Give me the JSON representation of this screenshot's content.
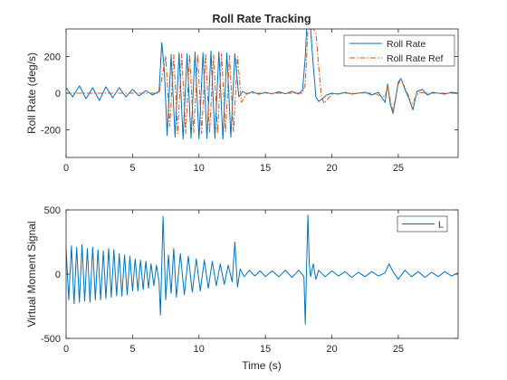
{
  "chart_data": [
    {
      "type": "line",
      "title": "Roll Rate Tracking",
      "xlabel": "",
      "ylabel": "Roll Rate (deg/s)",
      "xlim": [
        0,
        29.5
      ],
      "ylim": [
        -350,
        350
      ],
      "xticks": [
        0,
        5,
        10,
        15,
        20,
        25
      ],
      "yticks": [
        -200,
        0,
        200
      ],
      "xtick_labels": [
        "0",
        "5",
        "10",
        "15",
        "20",
        "25"
      ],
      "ytick_labels": [
        "-200",
        "0",
        "200"
      ],
      "legend_position": "top-right",
      "grid": false,
      "series": [
        {
          "name": "Roll Rate",
          "color": "#0072BD",
          "style": "solid",
          "x": [
            0,
            0.5,
            1,
            1.5,
            2,
            2.5,
            3,
            3.5,
            4,
            4.5,
            5,
            5.5,
            6,
            6.5,
            7,
            7.2,
            7.4,
            7.6,
            7.9,
            8.2,
            8.5,
            8.8,
            9.1,
            9.4,
            9.7,
            10.0,
            10.3,
            10.6,
            10.9,
            11.2,
            11.5,
            11.8,
            12.1,
            12.4,
            12.7,
            13.0,
            13.3,
            13.6,
            14,
            14.5,
            15,
            15.5,
            16,
            16.5,
            17,
            17.5,
            17.8,
            18.0,
            18.1,
            18.2,
            18.4,
            18.6,
            18.8,
            19.0,
            19.3,
            19.6,
            20,
            20.5,
            21,
            21.5,
            22,
            22.5,
            23,
            23.5,
            24.0,
            24.2,
            24.4,
            24.6,
            24.8,
            25.0,
            25.2,
            25.5,
            25.8,
            26.1,
            26.4,
            26.8,
            27.2,
            27.6,
            28,
            28.5,
            29,
            29.5
          ],
          "y": [
            30,
            -20,
            40,
            -30,
            30,
            -40,
            35,
            -25,
            30,
            -20,
            20,
            -15,
            15,
            -10,
            10,
            275,
            120,
            -230,
            210,
            -240,
            220,
            -250,
            215,
            -245,
            225,
            -250,
            220,
            -245,
            230,
            -245,
            225,
            -250,
            220,
            -240,
            215,
            -20,
            10,
            -5,
            8,
            -6,
            5,
            -4,
            8,
            -3,
            10,
            -5,
            20,
            200,
            350,
            350,
            350,
            150,
            -20,
            -45,
            -30,
            -10,
            0,
            -5,
            5,
            -5,
            0,
            5,
            -10,
            5,
            -50,
            50,
            -60,
            -110,
            -30,
            60,
            80,
            20,
            -30,
            -90,
            10,
            20,
            -10,
            5,
            0,
            -5,
            5,
            0
          ]
        },
        {
          "name": "Roll Rate Ref",
          "color": "#D95319",
          "style": "dashdot",
          "x": [
            0,
            1,
            2,
            3,
            4,
            5,
            6,
            7,
            7.2,
            7.5,
            7.8,
            8.1,
            8.4,
            8.7,
            9.0,
            9.3,
            9.6,
            9.9,
            10.2,
            10.5,
            10.8,
            11.1,
            11.4,
            11.7,
            12.0,
            12.3,
            12.6,
            12.9,
            13.2,
            13.6,
            14,
            15,
            16,
            17,
            17.8,
            18.0,
            18.2,
            18.4,
            18.6,
            18.8,
            19.0,
            19.2,
            19.4,
            19.7,
            20,
            21,
            22,
            23,
            24.0,
            24.2,
            24.4,
            24.6,
            24.8,
            25.0,
            25.2,
            25.5,
            25.8,
            26.0,
            26.3,
            26.6,
            27,
            28,
            29,
            29.5
          ],
          "y": [
            0,
            0,
            0,
            0,
            0,
            0,
            0,
            0,
            80,
            200,
            -180,
            210,
            -220,
            215,
            -220,
            210,
            -215,
            210,
            -220,
            215,
            -215,
            210,
            -220,
            215,
            -210,
            205,
            -210,
            200,
            -50,
            0,
            0,
            0,
            0,
            0,
            0,
            50,
            350,
            350,
            350,
            330,
            150,
            -10,
            -55,
            -30,
            -5,
            0,
            0,
            0,
            -20,
            40,
            -40,
            -100,
            -20,
            50,
            75,
            30,
            -20,
            -70,
            -20,
            5,
            0,
            0,
            0,
            0
          ]
        }
      ]
    },
    {
      "type": "line",
      "title": "",
      "xlabel": "Time (s)",
      "ylabel": "Virtual Moment Signal",
      "xlim": [
        0,
        29.5
      ],
      "ylim": [
        -500,
        500
      ],
      "xticks": [
        0,
        5,
        10,
        15,
        20,
        25
      ],
      "yticks": [
        -500,
        0,
        500
      ],
      "xtick_labels": [
        "0",
        "5",
        "10",
        "15",
        "20",
        "25"
      ],
      "ytick_labels": [
        "-500",
        "0",
        "500"
      ],
      "legend_position": "top-right",
      "grid": false,
      "series": [
        {
          "name": "L",
          "color": "#0072BD",
          "style": "solid",
          "x": [
            0,
            0.2,
            0.4,
            0.6,
            0.8,
            1.0,
            1.2,
            1.4,
            1.6,
            1.8,
            2.0,
            2.2,
            2.4,
            2.6,
            2.8,
            3.0,
            3.2,
            3.4,
            3.6,
            3.8,
            4.0,
            4.2,
            4.4,
            4.6,
            4.8,
            5.0,
            5.2,
            5.4,
            5.6,
            5.8,
            6.0,
            6.2,
            6.4,
            6.6,
            6.8,
            7.0,
            7.1,
            7.3,
            7.5,
            7.7,
            7.9,
            8.1,
            8.3,
            8.6,
            8.9,
            9.2,
            9.5,
            9.8,
            10.1,
            10.4,
            10.7,
            11.0,
            11.3,
            11.6,
            11.9,
            12.2,
            12.5,
            12.7,
            12.9,
            13.1,
            13.4,
            13.8,
            14.2,
            14.6,
            15,
            15.5,
            16,
            16.5,
            17,
            17.5,
            17.9,
            18.0,
            18.1,
            18.2,
            18.3,
            18.4,
            18.6,
            18.8,
            19,
            19.5,
            20,
            20.5,
            21,
            21.5,
            22,
            22.5,
            23,
            23.5,
            24,
            24.3,
            24.6,
            25,
            25.5,
            26,
            26.5,
            27,
            27.5,
            28,
            28.5,
            29,
            29.5
          ],
          "y": [
            200,
            -200,
            220,
            -230,
            210,
            -220,
            230,
            -210,
            200,
            -220,
            210,
            -200,
            190,
            -200,
            180,
            -190,
            200,
            -180,
            190,
            -170,
            160,
            -170,
            150,
            -160,
            140,
            -130,
            120,
            -130,
            110,
            -120,
            100,
            -110,
            80,
            -90,
            70,
            -60,
            -320,
            450,
            -200,
            150,
            -150,
            200,
            -180,
            160,
            -160,
            140,
            -140,
            120,
            -130,
            110,
            -110,
            100,
            -90,
            80,
            -80,
            70,
            -60,
            250,
            -100,
            40,
            -20,
            30,
            -15,
            25,
            -20,
            25,
            -20,
            30,
            -25,
            30,
            -20,
            -390,
            80,
            460,
            80,
            -20,
            80,
            -40,
            30,
            -20,
            25,
            -15,
            20,
            -25,
            15,
            -20,
            20,
            -15,
            10,
            80,
            20,
            -40,
            30,
            -20,
            20,
            -25,
            15,
            -20,
            20,
            -15,
            10
          ]
        }
      ]
    }
  ]
}
